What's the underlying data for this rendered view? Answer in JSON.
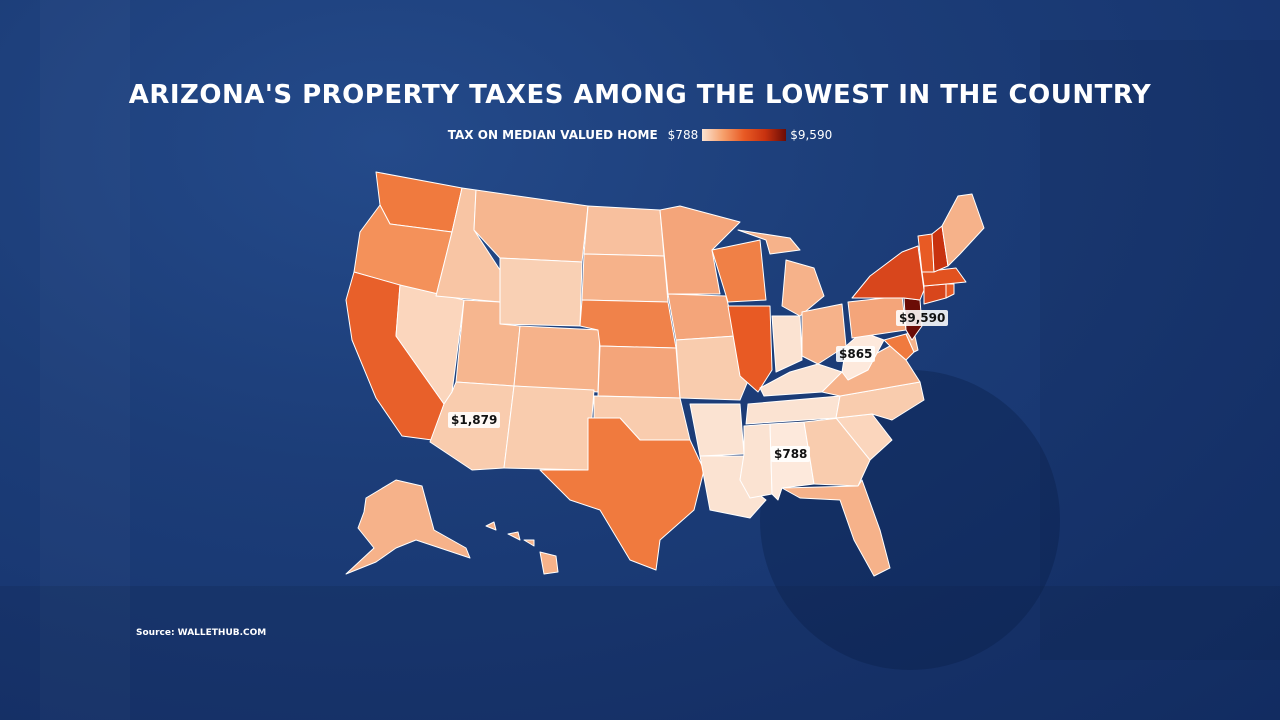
{
  "title": "ARIZONA'S PROPERTY TAXES AMONG THE LOWEST IN THE COUNTRY",
  "legend": {
    "label": "TAX ON MEDIAN VALUED HOME",
    "min": "$788",
    "max": "$9,590",
    "min_value": 788,
    "max_value": 9590
  },
  "callouts": {
    "new_jersey": "$9,590",
    "west_virginia": "$865",
    "arizona": "$1,879",
    "alabama": "$788"
  },
  "source": "Source: WALLETHUB.COM",
  "chart_data": {
    "type": "choropleth",
    "color_ramp": [
      "#fbe3d2",
      "#6b0c06"
    ],
    "states": [
      {
        "state": "New Jersey",
        "value": 9590
      },
      {
        "state": "West Virginia",
        "value": 865
      },
      {
        "state": "Arizona",
        "value": 1879
      },
      {
        "state": "Alabama",
        "value": 788
      }
    ]
  }
}
